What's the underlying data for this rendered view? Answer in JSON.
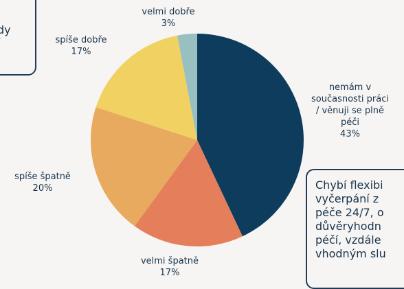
{
  "chart_data": {
    "type": "pie",
    "categories": [
      "nemám v současnosti práci / věnuji se plně péči",
      "velmi špatně",
      "spíše špatně",
      "spíše dobře",
      "velmi dobře"
    ],
    "values": [
      43,
      17,
      20,
      17,
      3
    ],
    "value_labels": [
      "43%",
      "17%",
      "20%",
      "17%",
      "3%"
    ],
    "colors": [
      "#0e3c5c",
      "#e57f5b",
      "#e8aa5f",
      "#f0d162",
      "#98c0c0"
    ]
  },
  "side_notes": {
    "left": [
      "dy",
      "í"
    ],
    "right": [
      "Chybí flexibi",
      "vyčerpání z",
      "péče 24/7, o",
      "důvěryhodn",
      "péčí, vzdále",
      "vhodným slu"
    ]
  }
}
